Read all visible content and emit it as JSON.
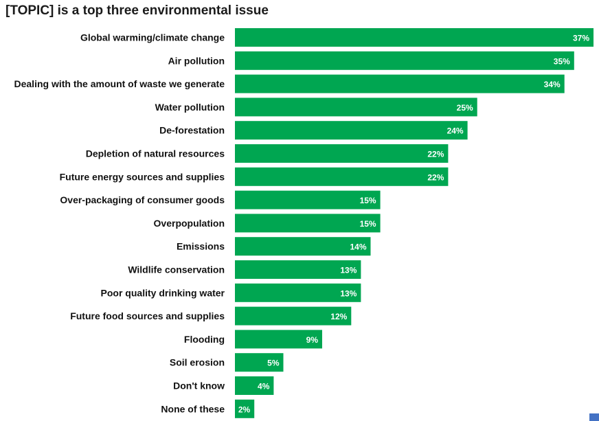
{
  "chart_data": {
    "type": "bar",
    "orientation": "horizontal",
    "title": "[TOPIC] is a top three environmental issue",
    "categories": [
      "Global warming/climate change",
      "Air pollution",
      "Dealing with the amount of waste we generate",
      "Water pollution",
      "De-forestation",
      "Depletion of natural resources",
      "Future energy sources and supplies",
      "Over-packaging of consumer goods",
      "Overpopulation",
      "Emissions",
      "Wildlife conservation",
      "Poor quality drinking water",
      "Future food sources and supplies",
      "Flooding",
      "Soil erosion",
      "Don't know",
      "None of these"
    ],
    "values": [
      37,
      35,
      34,
      25,
      24,
      22,
      22,
      15,
      15,
      14,
      13,
      13,
      12,
      9,
      5,
      4,
      2
    ],
    "value_suffix": "%",
    "xlim": [
      0,
      37
    ],
    "grid": false,
    "legend": "none",
    "bar_color": "#00a651"
  },
  "colors": {
    "bar": "#00a651",
    "corner_square": "#4472c4"
  }
}
